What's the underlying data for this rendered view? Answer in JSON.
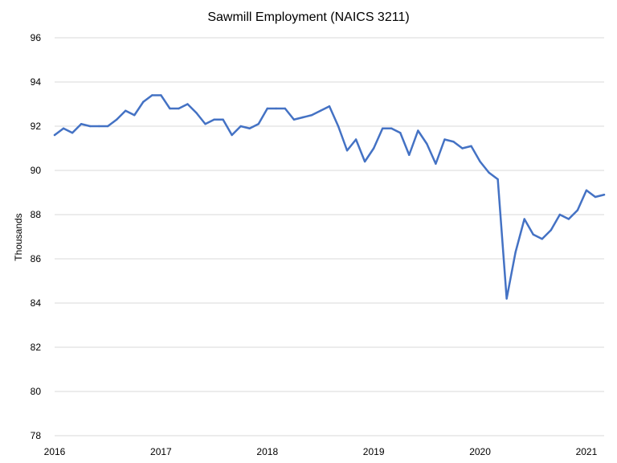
{
  "chart_data": {
    "type": "line",
    "title": "Sawmill Employment (NAICS 3211)",
    "xlabel": "",
    "ylabel": "Thousands",
    "ylim": [
      78,
      96
    ],
    "yticks": [
      "96",
      "94",
      "92",
      "90",
      "88",
      "86",
      "84",
      "82",
      "80",
      "78"
    ],
    "xticks": [
      "2016",
      "2017",
      "2018",
      "2019",
      "2020",
      "2021"
    ],
    "xlim": [
      "2016-01",
      "2021-03"
    ],
    "grid": true,
    "line_color": "#4472C4",
    "series": [
      {
        "x": [
          "2016-01",
          "2016-02",
          "2016-03",
          "2016-04",
          "2016-05",
          "2016-06",
          "2016-07",
          "2016-08",
          "2016-09",
          "2016-10",
          "2016-11",
          "2016-12",
          "2017-01",
          "2017-02",
          "2017-03",
          "2017-04",
          "2017-05",
          "2017-06",
          "2017-07",
          "2017-08",
          "2017-09",
          "2017-10",
          "2017-11",
          "2017-12",
          "2018-01",
          "2018-02",
          "2018-03",
          "2018-04",
          "2018-05",
          "2018-06",
          "2018-07",
          "2018-08",
          "2018-09",
          "2018-10",
          "2018-11",
          "2018-12",
          "2019-01",
          "2019-02",
          "2019-03",
          "2019-04",
          "2019-05",
          "2019-06",
          "2019-07",
          "2019-08",
          "2019-09",
          "2019-10",
          "2019-11",
          "2019-12",
          "2020-01",
          "2020-02",
          "2020-03",
          "2020-04",
          "2020-05",
          "2020-06",
          "2020-07",
          "2020-08",
          "2020-09",
          "2020-10",
          "2020-11",
          "2020-12",
          "2021-01",
          "2021-02",
          "2021-03"
        ],
        "values": [
          91.6,
          91.9,
          91.7,
          92.1,
          92.0,
          92.0,
          92.0,
          92.3,
          92.7,
          92.5,
          93.1,
          93.4,
          93.4,
          92.8,
          92.8,
          93.0,
          92.6,
          92.1,
          92.3,
          92.3,
          91.6,
          92.0,
          91.9,
          92.1,
          92.8,
          92.8,
          92.8,
          92.3,
          92.4,
          92.5,
          92.7,
          92.9,
          92.0,
          90.9,
          91.4,
          90.4,
          91.0,
          91.9,
          91.9,
          91.7,
          90.7,
          91.8,
          91.2,
          90.3,
          91.4,
          91.3,
          91.0,
          91.1,
          90.4,
          89.9,
          89.6,
          84.2,
          86.3,
          87.8,
          87.1,
          86.9,
          87.3,
          88.0,
          87.8,
          88.2,
          89.1,
          88.8,
          88.9
        ]
      }
    ]
  }
}
